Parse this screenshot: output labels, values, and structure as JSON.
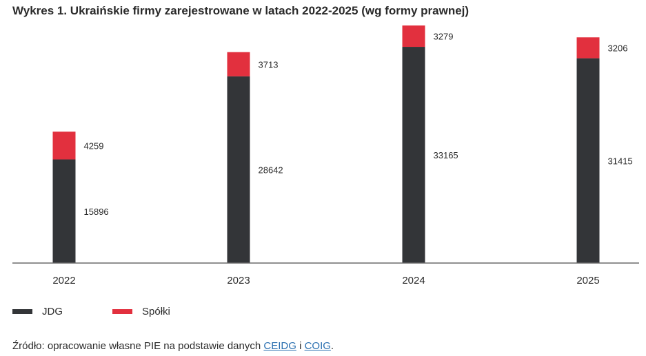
{
  "title": "Wykres 1. Ukraińskie firmy zarejestrowane w latach 2022-2025 (wg formy prawnej)",
  "chart_data": {
    "type": "bar",
    "stacked": true,
    "categories": [
      "2022",
      "2023",
      "2024",
      "2025"
    ],
    "series": [
      {
        "name": "JDG",
        "values": [
          15896,
          28642,
          33165,
          31415
        ],
        "color": "#333538"
      },
      {
        "name": "Spółki",
        "values": [
          4259,
          3713,
          3279,
          3206
        ],
        "color": "#e2303e"
      }
    ],
    "ylim": [
      0,
      37500
    ],
    "grid": false,
    "legend": "bottom-left",
    "axis_color": "#6a6a6a"
  },
  "legend": {
    "items": [
      {
        "label": "JDG",
        "color": "#333538"
      },
      {
        "label": "Spółki",
        "color": "#e2303e"
      }
    ]
  },
  "source": {
    "prefix": "Źródło: opracowanie własne PIE na podstawie danych ",
    "link1": "CEIDG",
    "separator": " i ",
    "link2": "COIG",
    "suffix": "."
  }
}
